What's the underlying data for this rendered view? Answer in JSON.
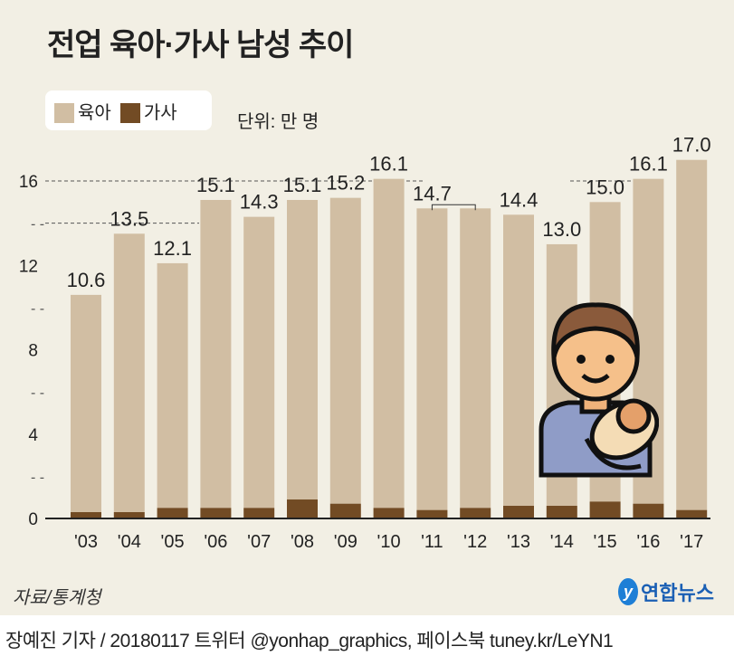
{
  "title": "전업 육아·가사 남성 추이",
  "unit": "단위: 만 명",
  "source": "자료/통계청",
  "logo_text": "연합뉴스",
  "footer": "장예진 기자 / 20180117 트위터 @yonhap_graphics, 페이스북 tuney.kr/LeYN1",
  "colors": {
    "childcare": "#d1bea3",
    "housework": "#724b24",
    "background": "#f2efe4"
  },
  "chart_data": {
    "type": "bar",
    "stacked": true,
    "title": "전업 육아·가사 남성 추이",
    "ylabel": "단위: 만 명",
    "categories": [
      "'03",
      "'04",
      "'05",
      "'06",
      "'07",
      "'08",
      "'09",
      "'10",
      "'11",
      "'12",
      "'13",
      "'14",
      "'15",
      "'16",
      "'17"
    ],
    "series": [
      {
        "name": "가사",
        "values": [
          0.3,
          0.3,
          0.5,
          0.5,
          0.5,
          0.9,
          0.7,
          0.5,
          0.4,
          0.5,
          0.6,
          0.6,
          0.8,
          0.7,
          0.4
        ]
      },
      {
        "name": "육아",
        "values": [
          10.3,
          13.2,
          11.6,
          14.6,
          13.8,
          14.2,
          14.5,
          15.6,
          14.3,
          14.2,
          13.8,
          12.4,
          14.2,
          15.4,
          16.6
        ]
      }
    ],
    "totals": [
      10.6,
      13.5,
      12.1,
      15.1,
      14.3,
      15.1,
      15.2,
      16.1,
      14.7,
      14.7,
      14.4,
      13.0,
      15.0,
      16.1,
      17.0
    ],
    "total_labels": [
      "10.6",
      "13.5",
      "12.1",
      "15.1",
      "14.3",
      "15.1",
      "15.2",
      "16.1",
      "14.7",
      "",
      "14.4",
      "13.0",
      "15.0",
      "16.1",
      "17.0"
    ],
    "yticks": [
      0,
      4,
      8,
      12,
      16
    ],
    "ylim": [
      0,
      17
    ],
    "legend": [
      "육아",
      "가사"
    ],
    "legend_position": "top-left"
  }
}
